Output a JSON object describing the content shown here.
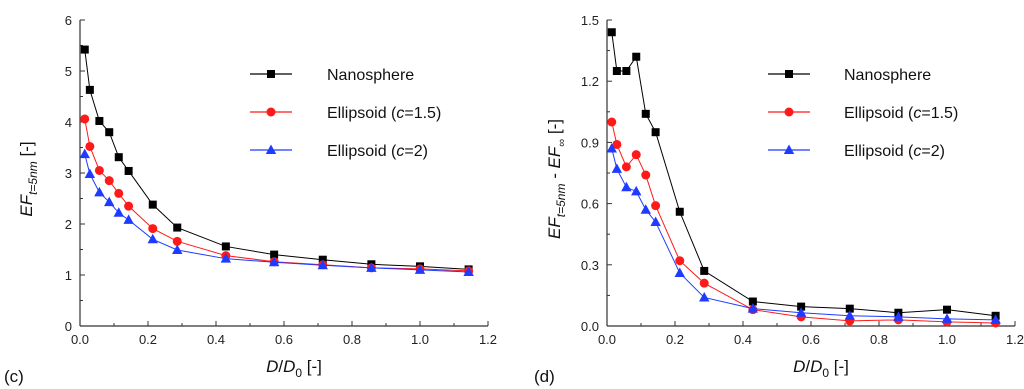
{
  "colors": {
    "nanosphere": "#000000",
    "ellipsoid15": "#ff1a1a",
    "ellipsoid2": "#1f3bff",
    "axis": "#333333"
  },
  "chart_data": [
    {
      "type": "line",
      "panel_label": "(c)",
      "xlabel": {
        "main": "D",
        "slash": "/",
        "base": "D",
        "sub": "0",
        "unit": " [-]"
      },
      "ylabel": {
        "main": "EF",
        "sub": "t=5nm",
        "unit": " [-]"
      },
      "xlim": [
        0,
        1.2
      ],
      "ylim": [
        0,
        6
      ],
      "xticks": [
        0.0,
        0.2,
        0.4,
        0.6,
        0.8,
        1.0,
        1.2
      ],
      "xtick_labels": [
        "0.0",
        "0.2",
        "0.4",
        "0.6",
        "0.8",
        "1.0",
        "1.2"
      ],
      "yticks": [
        0,
        1,
        2,
        3,
        4,
        5,
        6
      ],
      "ytick_labels": [
        "0",
        "1",
        "2",
        "3",
        "4",
        "5",
        "6"
      ],
      "legend": "top-right",
      "x": [
        0.014,
        0.029,
        0.057,
        0.086,
        0.114,
        0.143,
        0.214,
        0.286,
        0.429,
        0.571,
        0.714,
        0.857,
        1.0,
        1.143
      ],
      "series": [
        {
          "name": "Nanosphere",
          "name_prefix": "Nanosphere",
          "name_italic": "",
          "name_suffix": "",
          "marker": "square",
          "color": "#000000",
          "values": [
            5.42,
            4.63,
            4.02,
            3.8,
            3.31,
            3.04,
            2.38,
            1.93,
            1.56,
            1.4,
            1.3,
            1.21,
            1.17,
            1.11
          ]
        },
        {
          "name": "Ellipsoid (c=1.5)",
          "name_prefix": "Ellipsoid (",
          "name_italic": "c",
          "name_suffix": "=1.5)",
          "marker": "circle",
          "color": "#ff1a1a",
          "values": [
            4.06,
            3.52,
            3.05,
            2.85,
            2.6,
            2.35,
            1.91,
            1.66,
            1.38,
            1.26,
            1.2,
            1.14,
            1.12,
            1.08
          ]
        },
        {
          "name": "Ellipsoid (c=2)",
          "name_prefix": "Ellipsoid (",
          "name_italic": "c",
          "name_suffix": "=2)",
          "marker": "triangle",
          "color": "#1f3bff",
          "values": [
            3.37,
            2.98,
            2.62,
            2.43,
            2.22,
            2.08,
            1.7,
            1.49,
            1.32,
            1.25,
            1.19,
            1.14,
            1.1,
            1.06
          ]
        }
      ]
    },
    {
      "type": "line",
      "panel_label": "(d)",
      "xlabel": {
        "main": "D",
        "slash": "/",
        "base": "D",
        "sub": "0",
        "unit": " [-]"
      },
      "ylabel": {
        "main": "EF",
        "sub": "t=5nm",
        "mid": " - EF",
        "sub2": "∞",
        "unit": " [-]"
      },
      "xlim": [
        0,
        1.2
      ],
      "ylim": [
        0,
        1.5
      ],
      "xticks": [
        0.0,
        0.2,
        0.4,
        0.6,
        0.8,
        1.0,
        1.2
      ],
      "xtick_labels": [
        "0.0",
        "0.2",
        "0.4",
        "0.6",
        "0.8",
        "1.0",
        "1.2"
      ],
      "yticks": [
        0.0,
        0.3,
        0.6,
        0.9,
        1.2,
        1.5
      ],
      "ytick_labels": [
        "0.0",
        "0.3",
        "0.6",
        "0.9",
        "1.2",
        "1.5"
      ],
      "legend": "top-right",
      "x": [
        0.014,
        0.029,
        0.057,
        0.086,
        0.114,
        0.143,
        0.214,
        0.286,
        0.429,
        0.571,
        0.714,
        0.857,
        1.0,
        1.143
      ],
      "series": [
        {
          "name": "Nanosphere",
          "name_prefix": "Nanosphere",
          "name_italic": "",
          "name_suffix": "",
          "marker": "square",
          "color": "#000000",
          "values": [
            1.44,
            1.25,
            1.25,
            1.32,
            1.04,
            0.95,
            0.56,
            0.27,
            0.12,
            0.095,
            0.085,
            0.065,
            0.08,
            0.05
          ]
        },
        {
          "name": "Ellipsoid (c=1.5)",
          "name_prefix": "Ellipsoid (",
          "name_italic": "c",
          "name_suffix": "=1.5)",
          "marker": "circle",
          "color": "#ff1a1a",
          "values": [
            1.0,
            0.89,
            0.78,
            0.84,
            0.74,
            0.59,
            0.32,
            0.21,
            0.08,
            0.045,
            0.025,
            0.03,
            0.02,
            0.015
          ]
        },
        {
          "name": "Ellipsoid (c=2)",
          "name_prefix": "Ellipsoid (",
          "name_italic": "c",
          "name_suffix": "=2)",
          "marker": "triangle",
          "color": "#1f3bff",
          "values": [
            0.87,
            0.77,
            0.68,
            0.66,
            0.57,
            0.51,
            0.26,
            0.14,
            0.085,
            0.065,
            0.05,
            0.045,
            0.035,
            0.03
          ]
        }
      ]
    }
  ]
}
